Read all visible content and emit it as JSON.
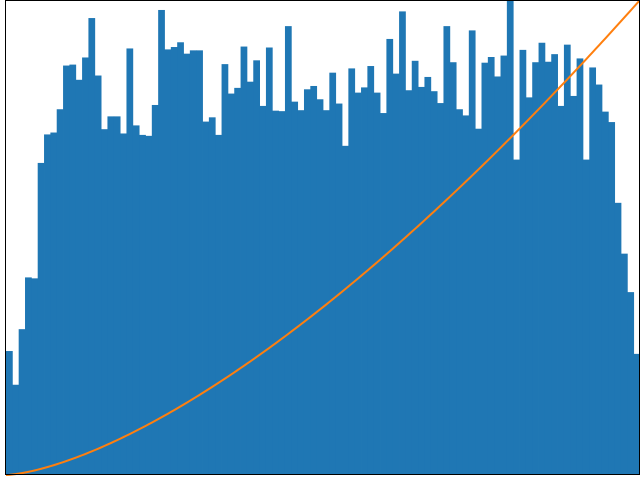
{
  "chart_data": {
    "type": "bar",
    "bins": 100,
    "xlim": [
      0,
      1
    ],
    "ylim": [
      0,
      1
    ],
    "grid": false,
    "axes_visible": false,
    "bar_color": "#1f77b4",
    "line_color": "#ff7f0e",
    "title": "",
    "xlabel": "",
    "ylabel": "",
    "series": [
      {
        "type": "bar",
        "values": [
          0.261,
          0.19,
          0.307,
          0.416,
          0.414,
          0.657,
          0.717,
          0.721,
          0.77,
          0.862,
          0.864,
          0.832,
          0.879,
          0.962,
          0.841,
          0.728,
          0.755,
          0.755,
          0.719,
          0.898,
          0.736,
          0.716,
          0.714,
          0.779,
          0.979,
          0.896,
          0.901,
          0.911,
          0.887,
          0.894,
          0.894,
          0.744,
          0.753,
          0.716,
          0.865,
          0.803,
          0.815,
          0.902,
          0.828,
          0.873,
          0.777,
          0.9,
          0.767,
          0.766,
          0.945,
          0.786,
          0.768,
          0.812,
          0.819,
          0.791,
          0.768,
          0.847,
          0.782,
          0.693,
          0.856,
          0.805,
          0.816,
          0.861,
          0.805,
          0.762,
          0.918,
          0.845,
          0.976,
          0.81,
          0.872,
          0.817,
          0.838,
          0.808,
          0.783,
          0.945,
          0.869,
          0.77,
          0.757,
          0.936,
          0.729,
          0.868,
          0.88,
          0.839,
          0.883,
          1.0,
          0.664,
          0.895,
          0.795,
          0.869,
          0.91,
          0.87,
          0.886,
          0.777,
          0.906,
          0.798,
          0.877,
          0.664,
          0.858,
          0.822,
          0.765,
          0.743,
          0.573,
          0.466,
          0.385,
          0.255
        ]
      },
      {
        "type": "line",
        "x_start": 0,
        "x_end": 1,
        "y_start": 0,
        "y_end": 1,
        "exponent": 1.5
      }
    ]
  }
}
